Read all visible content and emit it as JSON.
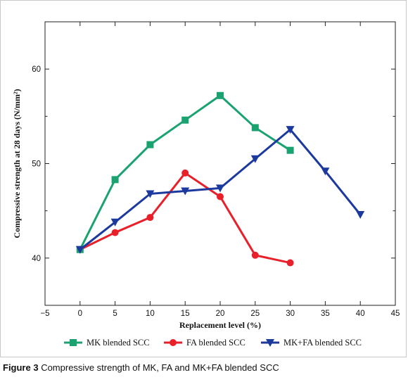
{
  "chart_data": {
    "type": "line",
    "xlabel": "Replacement level (%)",
    "ylabel": "Compressive strength at 28 days (N/mm²)",
    "xlim": [
      -5,
      45
    ],
    "ylim": [
      35,
      65
    ],
    "x_ticks": [
      -5,
      0,
      5,
      10,
      15,
      20,
      25,
      30,
      35,
      40,
      45
    ],
    "y_ticks": [
      40,
      50,
      60
    ],
    "grid": false,
    "legend_position": "bottom",
    "series": [
      {
        "name": "MK blended SCC",
        "color": "#1aa370",
        "marker": "square",
        "x": [
          0,
          5,
          10,
          15,
          20,
          25,
          30
        ],
        "y": [
          40.9,
          48.3,
          52.0,
          54.6,
          57.2,
          53.8,
          51.4
        ]
      },
      {
        "name": "FA blended SCC",
        "color": "#e8202a",
        "marker": "circle",
        "x": [
          0,
          5,
          10,
          15,
          20,
          25,
          30
        ],
        "y": [
          40.9,
          42.7,
          44.3,
          49.0,
          46.5,
          40.3,
          39.5
        ]
      },
      {
        "name": "MK+FA blended SCC",
        "color": "#1c3a9e",
        "marker": "triangle-down",
        "x": [
          0,
          5,
          10,
          15,
          20,
          25,
          30,
          35,
          40
        ],
        "y": [
          40.9,
          43.8,
          46.8,
          47.1,
          47.4,
          50.5,
          53.6,
          49.2,
          44.6
        ]
      }
    ]
  },
  "caption": {
    "label": "Figure 3",
    "text": " Compressive strength of MK, FA and MK+FA blended SCC"
  }
}
